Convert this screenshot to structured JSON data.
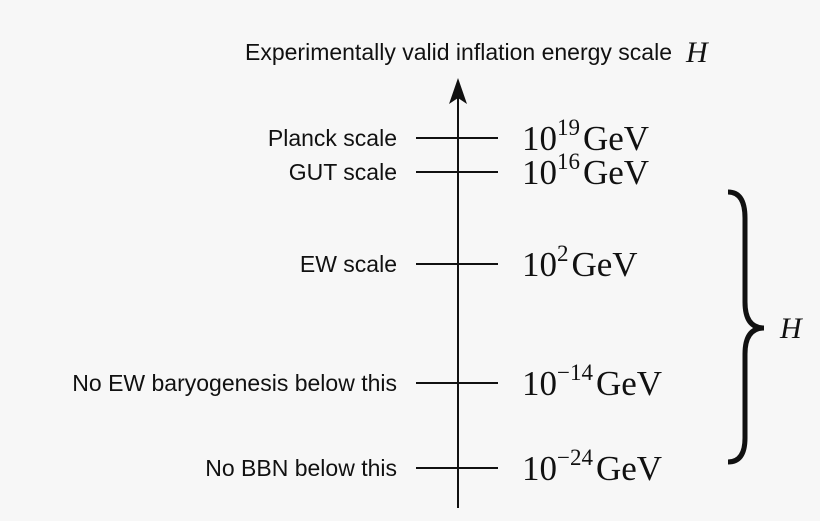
{
  "title": {
    "text": "Experimentally valid inflation energy scale",
    "symbol": "H"
  },
  "levels": [
    {
      "label": "Planck scale",
      "base": "10",
      "exponent": "19",
      "unit": "GeV"
    },
    {
      "label": "GUT scale",
      "base": "10",
      "exponent": "16",
      "unit": "GeV"
    },
    {
      "label": "EW scale",
      "base": "10",
      "exponent": "2",
      "unit": "GeV"
    },
    {
      "label": "No EW baryogenesis below this",
      "base": "10",
      "exponent": "−14",
      "unit": "GeV"
    },
    {
      "label": "No BBN below this",
      "base": "10",
      "exponent": "−24",
      "unit": "GeV"
    }
  ],
  "brace": {
    "label": "H"
  }
}
